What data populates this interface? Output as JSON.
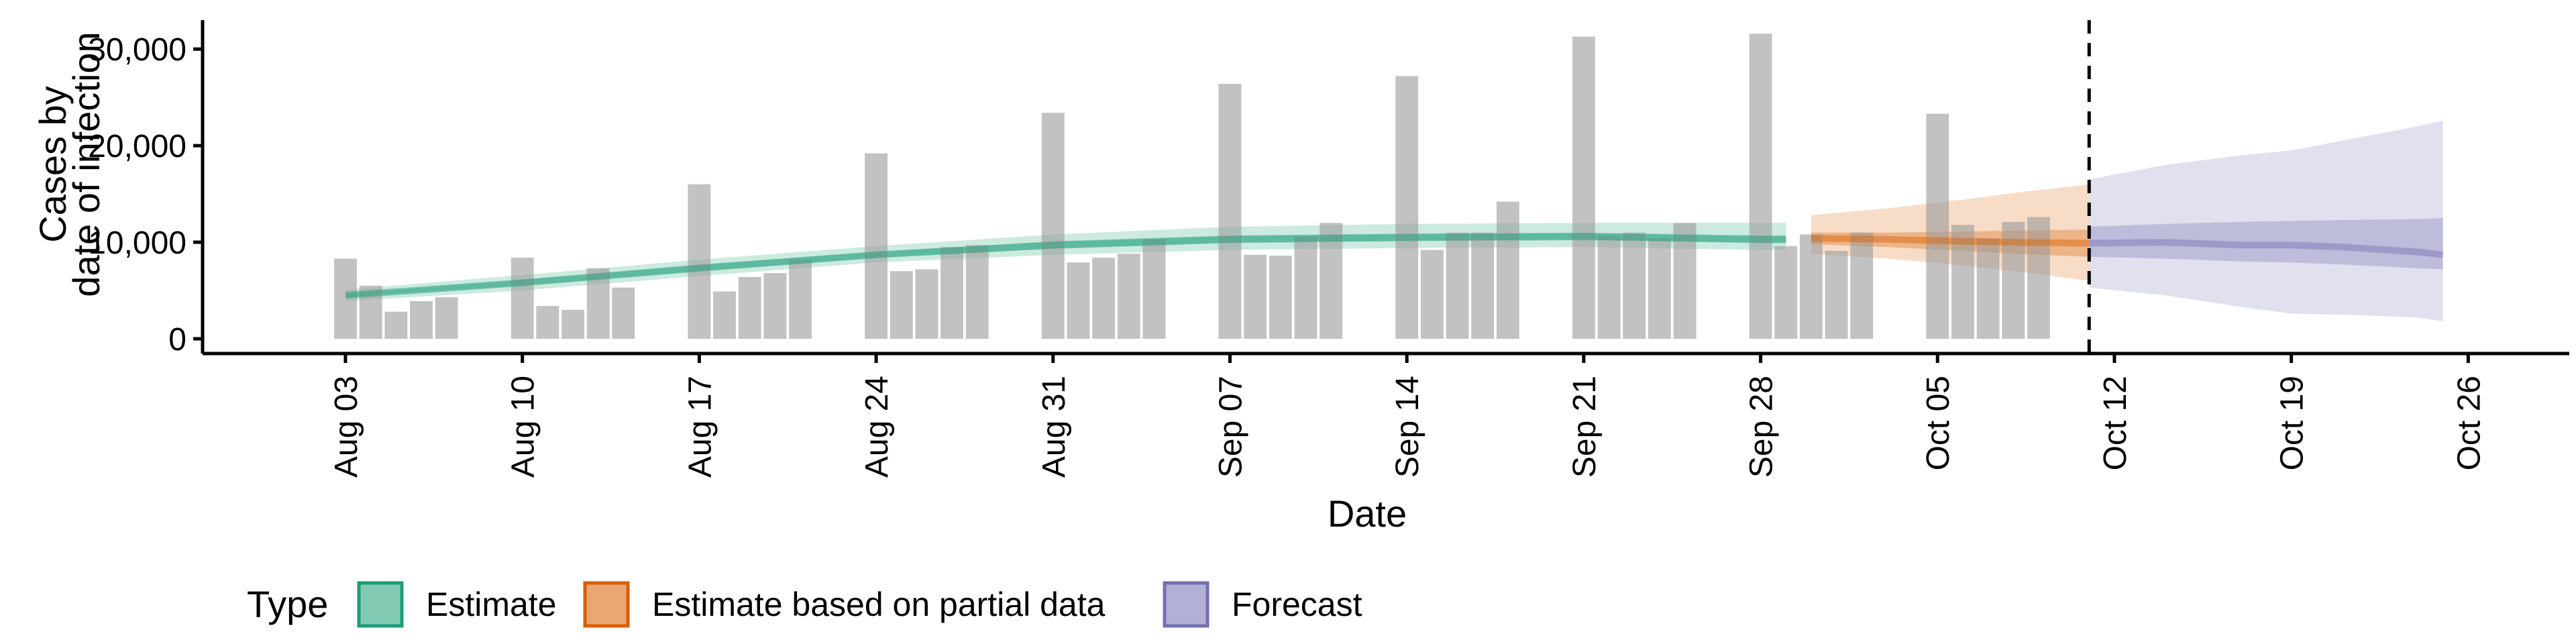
{
  "chart_data": {
    "type": "bar",
    "xlabel": "Date",
    "ylabel_lines": [
      "Cases by",
      "date of infection"
    ],
    "y_ticks": [
      0,
      10000,
      20000,
      30000
    ],
    "y_tick_labels": [
      "0",
      "10,000",
      "20,000",
      "30,000"
    ],
    "ylim": [
      0,
      33000
    ],
    "xlim": [
      "2020-07-31",
      "2020-10-30"
    ],
    "x_ticks": [
      "2020-08-03",
      "2020-08-10",
      "2020-08-17",
      "2020-08-24",
      "2020-08-31",
      "2020-09-07",
      "2020-09-14",
      "2020-09-21",
      "2020-09-28",
      "2020-10-05",
      "2020-10-12",
      "2020-10-19",
      "2020-10-26"
    ],
    "x_tick_labels": [
      "Aug 03",
      "Aug 10",
      "Aug 17",
      "Aug 24",
      "Aug 31",
      "Sep 07",
      "Sep 14",
      "Sep 21",
      "Sep 28",
      "Oct 05",
      "Oct 12",
      "Oct 19",
      "Oct 26"
    ],
    "forecast_start": "2020-10-11",
    "bars": {
      "start_date": "2020-08-03",
      "values": [
        8300,
        5500,
        2800,
        3900,
        4300,
        null,
        null,
        8400,
        3400,
        3000,
        7300,
        5300,
        null,
        null,
        16000,
        4900,
        6400,
        6800,
        8200,
        null,
        null,
        19200,
        7000,
        7200,
        9500,
        9700,
        null,
        null,
        23400,
        7900,
        8400,
        8800,
        10300,
        null,
        null,
        26400,
        8700,
        8600,
        10600,
        12000,
        null,
        null,
        27200,
        9200,
        11000,
        11000,
        14200,
        null,
        null,
        31300,
        10700,
        11000,
        10400,
        12000,
        null,
        null,
        31600,
        9600,
        10800,
        9100,
        11000,
        null,
        null,
        23300,
        11800,
        10400,
        12100,
        12600
      ]
    },
    "series": [
      {
        "name": "Estimate",
        "color": "#1b9e77",
        "x": [
          "2020-08-03",
          "2020-08-10",
          "2020-08-17",
          "2020-08-24",
          "2020-08-31",
          "2020-09-07",
          "2020-09-14",
          "2020-09-21",
          "2020-09-28",
          "2020-09-29"
        ],
        "median": [
          4500,
          5800,
          7300,
          8700,
          9700,
          10300,
          10500,
          10600,
          10300,
          10300
        ],
        "lower_50": [
          4300,
          5500,
          7000,
          8400,
          9300,
          9900,
          10100,
          10200,
          9900,
          9900
        ],
        "upper_50": [
          4700,
          6100,
          7700,
          9000,
          10100,
          10700,
          10900,
          11000,
          10700,
          10700
        ],
        "lower_90": [
          3900,
          5000,
          6500,
          7900,
          8700,
          9200,
          9400,
          9500,
          9200,
          9200
        ],
        "upper_90": [
          5100,
          6600,
          8200,
          9600,
          10800,
          11600,
          11900,
          12000,
          12000,
          12000
        ]
      },
      {
        "name": "Estimate based on partial data",
        "color": "#d95f02",
        "x": [
          "2020-09-30",
          "2020-10-03",
          "2020-10-06",
          "2020-10-08",
          "2020-10-11"
        ],
        "median": [
          10400,
          10300,
          10100,
          10000,
          9900
        ],
        "lower_50": [
          9800,
          9500,
          9100,
          8800,
          8500
        ],
        "upper_50": [
          11000,
          11000,
          11100,
          11200,
          11300
        ],
        "lower_90": [
          8800,
          8300,
          7600,
          7000,
          6000
        ],
        "upper_90": [
          12800,
          13500,
          14400,
          15100,
          16000
        ]
      },
      {
        "name": "Forecast",
        "color": "#7570b3",
        "x": [
          "2020-10-11",
          "2020-10-14",
          "2020-10-17",
          "2020-10-19",
          "2020-10-21",
          "2020-10-24",
          "2020-10-25"
        ],
        "median": [
          9900,
          10000,
          9700,
          9700,
          9500,
          9000,
          8700
        ],
        "lower_50": [
          8500,
          8300,
          8000,
          7900,
          7700,
          7300,
          7200
        ],
        "upper_50": [
          11600,
          11900,
          12100,
          12200,
          12300,
          12400,
          12500
        ],
        "lower_90": [
          5300,
          4500,
          3300,
          2600,
          2500,
          2200,
          1800
        ],
        "upper_90": [
          16500,
          18000,
          19000,
          19500,
          20500,
          22000,
          22600
        ]
      }
    ],
    "legend": {
      "title": "Type",
      "position": "bottom-left",
      "items": [
        "Estimate",
        "Estimate based on partial data",
        "Forecast"
      ]
    },
    "grid": false
  }
}
